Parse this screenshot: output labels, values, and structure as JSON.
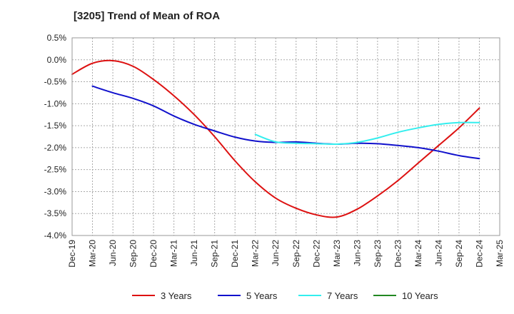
{
  "chart_data": {
    "type": "line",
    "title": "[3205]  Trend of Mean of ROA",
    "xlabel": "",
    "ylabel": "",
    "x_ticks": [
      "Dec-19",
      "Mar-20",
      "Jun-20",
      "Sep-20",
      "Dec-20",
      "Mar-21",
      "Jun-21",
      "Sep-21",
      "Dec-21",
      "Mar-22",
      "Jun-22",
      "Sep-22",
      "Dec-22",
      "Mar-23",
      "Jun-23",
      "Sep-23",
      "Dec-23",
      "Mar-24",
      "Jun-24",
      "Sep-24",
      "Dec-24",
      "Mar-25"
    ],
    "y_ticks": [
      "0.5%",
      "0.0%",
      "-0.5%",
      "-1.0%",
      "-1.5%",
      "-2.0%",
      "-2.5%",
      "-3.0%",
      "-3.5%",
      "-4.0%"
    ],
    "ylim": [
      -4.0,
      0.5
    ],
    "grid": true,
    "legend_position": "bottom",
    "series": [
      {
        "name": "3 Years",
        "color": "#dd1111",
        "start_index": 0,
        "values": [
          -0.33,
          -0.08,
          -0.02,
          -0.15,
          -0.45,
          -0.82,
          -1.25,
          -1.75,
          -2.3,
          -2.78,
          -3.15,
          -3.38,
          -3.53,
          -3.58,
          -3.4,
          -3.1,
          -2.75,
          -2.35,
          -1.95,
          -1.55,
          -1.1
        ]
      },
      {
        "name": "5 Years",
        "color": "#1111cc",
        "start_index": 1,
        "values": [
          -0.6,
          -0.75,
          -0.88,
          -1.05,
          -1.28,
          -1.47,
          -1.62,
          -1.76,
          -1.85,
          -1.88,
          -1.87,
          -1.9,
          -1.92,
          -1.9,
          -1.91,
          -1.95,
          -2.0,
          -2.08,
          -2.18,
          -2.25
        ]
      },
      {
        "name": "7 Years",
        "color": "#33eeee",
        "start_index": 9,
        "values": [
          -1.7,
          -1.87,
          -1.9,
          -1.91,
          -1.92,
          -1.88,
          -1.78,
          -1.65,
          -1.55,
          -1.47,
          -1.43,
          -1.43
        ]
      },
      {
        "name": "10 Years",
        "color": "#228822",
        "start_index": 0,
        "values": []
      }
    ]
  }
}
